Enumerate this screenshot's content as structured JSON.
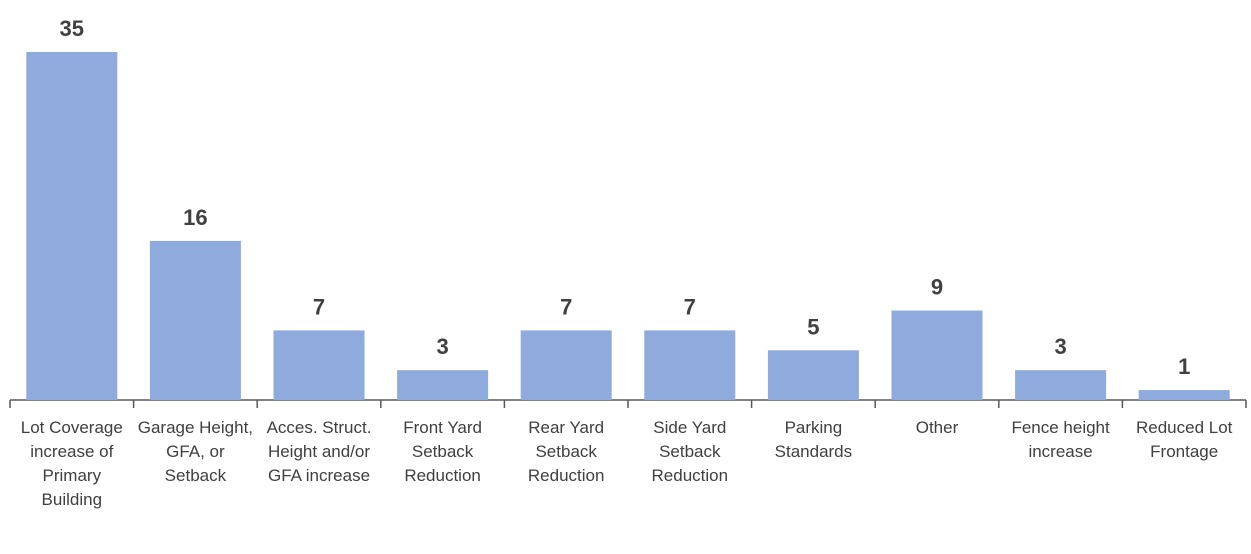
{
  "chart_data": {
    "type": "bar",
    "categories": [
      "Lot Coverage increase of Primary Building",
      "Garage Height, GFA, or Setback",
      "Acces. Struct. Height and/or GFA increase",
      "Front Yard Setback Reduction",
      "Rear Yard Setback Reduction",
      "Side Yard Setback Reduction",
      "Parking Standards",
      "Other",
      "Fence height increase",
      "Reduced Lot Frontage"
    ],
    "values": [
      35,
      16,
      7,
      3,
      7,
      7,
      5,
      9,
      3,
      1
    ],
    "color": "#8faadc"
  }
}
